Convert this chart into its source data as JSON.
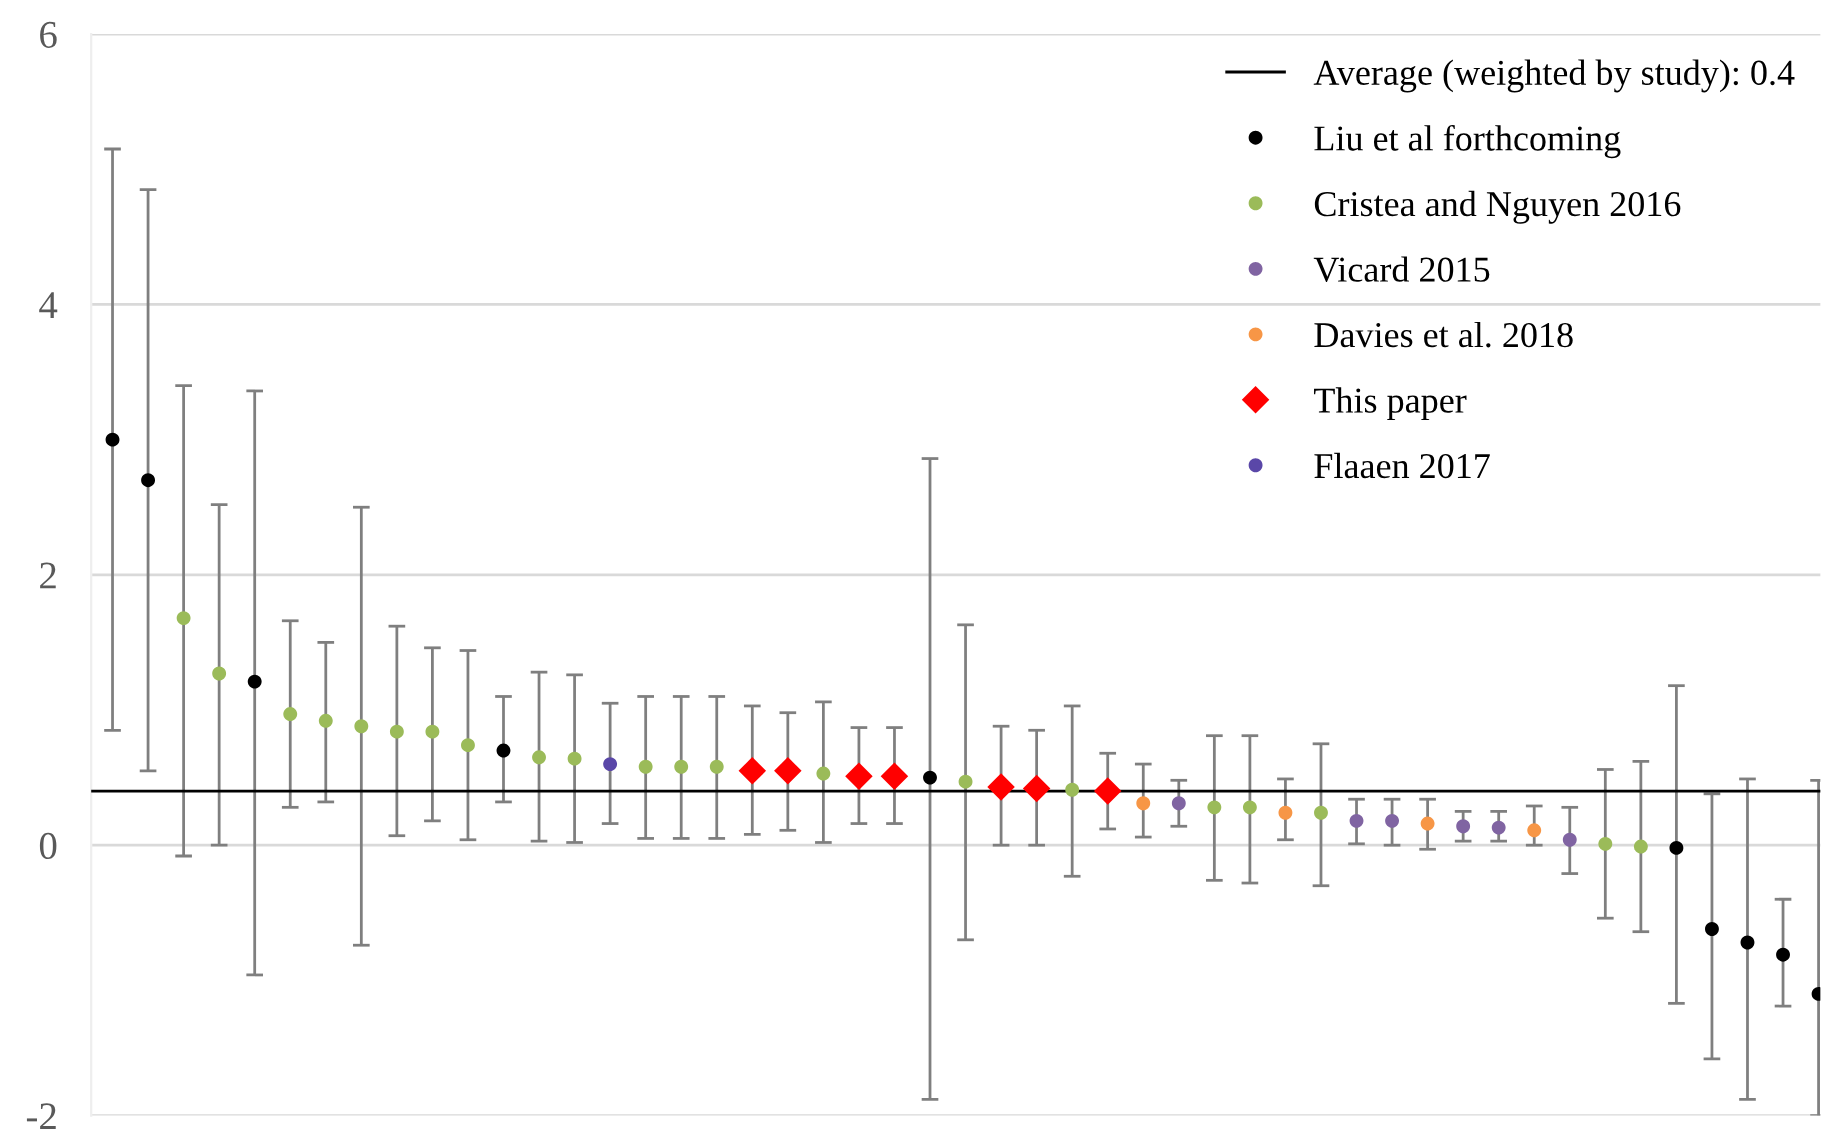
{
  "chart_data": {
    "type": "scatter",
    "categories": [
      null,
      null,
      null,
      null,
      null,
      null,
      null,
      null,
      null,
      null,
      null,
      null,
      null,
      null,
      null,
      null,
      null,
      null,
      null,
      null,
      null,
      null,
      null,
      null,
      null,
      null,
      null,
      null,
      null,
      null,
      null,
      null,
      null,
      null,
      null,
      null,
      null,
      null,
      null,
      null,
      null,
      null,
      null,
      null,
      null,
      null,
      null,
      null,
      null
    ],
    "series": [
      {
        "name": "Liu et al forthcoming",
        "color": "#000000",
        "marker": "circle",
        "values": [
          3.0,
          2.7,
          null,
          null,
          1.21,
          null,
          null,
          null,
          null,
          null,
          null,
          0.7,
          null,
          null,
          null,
          null,
          null,
          null,
          null,
          null,
          null,
          null,
          null,
          0.5,
          null,
          null,
          null,
          null,
          null,
          null,
          null,
          null,
          null,
          null,
          null,
          null,
          null,
          null,
          null,
          null,
          null,
          null,
          null,
          null,
          -0.02,
          -0.62,
          -0.72,
          -0.81,
          -1.1
        ],
        "errors": [
          [
            0.85,
            5.15
          ],
          [
            0.55,
            4.85
          ],
          null,
          null,
          [
            -0.96,
            3.36
          ],
          null,
          null,
          null,
          null,
          null,
          null,
          [
            0.32,
            1.1
          ],
          null,
          null,
          null,
          null,
          null,
          null,
          null,
          null,
          null,
          null,
          null,
          [
            -1.88,
            2.86
          ],
          null,
          null,
          null,
          null,
          null,
          null,
          null,
          null,
          null,
          null,
          null,
          null,
          null,
          null,
          null,
          null,
          null,
          null,
          null,
          null,
          [
            -1.17,
            1.18
          ],
          [
            -1.58,
            0.38
          ],
          [
            -1.88,
            0.49
          ],
          [
            -1.19,
            -0.4
          ],
          [
            -2.0,
            0.48
          ]
        ]
      },
      {
        "name": "Cristea and Nguyen 2016",
        "color": "#9bbb59",
        "marker": "circle",
        "values": [
          null,
          null,
          1.68,
          1.27,
          null,
          0.97,
          0.92,
          0.88,
          0.84,
          0.84,
          0.74,
          null,
          0.65,
          0.64,
          null,
          0.58,
          0.58,
          0.58,
          null,
          null,
          0.53,
          null,
          null,
          null,
          0.47,
          null,
          null,
          0.41,
          null,
          null,
          null,
          0.28,
          0.28,
          null,
          0.24,
          null,
          null,
          null,
          null,
          null,
          null,
          null,
          0.01,
          -0.01,
          null,
          null,
          null,
          null,
          null
        ],
        "errors": [
          null,
          null,
          [
            -0.08,
            3.4
          ],
          [
            0.0,
            2.52
          ],
          null,
          [
            0.28,
            1.66
          ],
          [
            0.32,
            1.5
          ],
          [
            -0.74,
            2.5
          ],
          [
            0.07,
            1.62
          ],
          [
            0.18,
            1.46
          ],
          [
            0.04,
            1.44
          ],
          null,
          [
            0.03,
            1.28
          ],
          [
            0.02,
            1.26
          ],
          null,
          [
            0.05,
            1.1
          ],
          [
            0.05,
            1.1
          ],
          [
            0.05,
            1.1
          ],
          null,
          null,
          [
            0.02,
            1.06
          ],
          null,
          null,
          null,
          [
            -0.7,
            1.63
          ],
          null,
          null,
          [
            -0.23,
            1.03
          ],
          null,
          null,
          null,
          [
            -0.26,
            0.81
          ],
          [
            -0.28,
            0.81
          ],
          null,
          [
            -0.3,
            0.75
          ],
          null,
          null,
          null,
          null,
          null,
          null,
          null,
          [
            -0.54,
            0.56
          ],
          [
            -0.64,
            0.62
          ],
          null,
          null,
          null,
          null,
          null
        ]
      },
      {
        "name": "Vicard 2015",
        "color": "#8064a2",
        "marker": "circle",
        "values": [
          null,
          null,
          null,
          null,
          null,
          null,
          null,
          null,
          null,
          null,
          null,
          null,
          null,
          null,
          null,
          null,
          null,
          null,
          null,
          null,
          null,
          null,
          null,
          null,
          null,
          null,
          null,
          null,
          null,
          null,
          0.31,
          null,
          null,
          null,
          null,
          0.18,
          0.18,
          null,
          0.14,
          0.13,
          null,
          0.04,
          null,
          null,
          null,
          null,
          null,
          null,
          null
        ],
        "errors": [
          null,
          null,
          null,
          null,
          null,
          null,
          null,
          null,
          null,
          null,
          null,
          null,
          null,
          null,
          null,
          null,
          null,
          null,
          null,
          null,
          null,
          null,
          null,
          null,
          null,
          null,
          null,
          null,
          null,
          null,
          [
            0.14,
            0.48
          ],
          null,
          null,
          null,
          null,
          [
            0.01,
            0.34
          ],
          [
            0.0,
            0.34
          ],
          null,
          [
            0.03,
            0.25
          ],
          [
            0.03,
            0.25
          ],
          null,
          [
            -0.21,
            0.28
          ],
          null,
          null,
          null,
          null,
          null,
          null,
          null
        ]
      },
      {
        "name": "Davies et al. 2018",
        "color": "#f79646",
        "marker": "circle",
        "values": [
          null,
          null,
          null,
          null,
          null,
          null,
          null,
          null,
          null,
          null,
          null,
          null,
          null,
          null,
          null,
          null,
          null,
          null,
          null,
          null,
          null,
          null,
          null,
          null,
          null,
          null,
          null,
          null,
          null,
          0.31,
          null,
          null,
          null,
          0.24,
          null,
          null,
          null,
          0.16,
          null,
          null,
          0.11,
          null,
          null,
          null,
          null,
          null,
          null,
          null,
          null
        ],
        "errors": [
          null,
          null,
          null,
          null,
          null,
          null,
          null,
          null,
          null,
          null,
          null,
          null,
          null,
          null,
          null,
          null,
          null,
          null,
          null,
          null,
          null,
          null,
          null,
          null,
          null,
          null,
          null,
          null,
          null,
          [
            0.06,
            0.6
          ],
          null,
          null,
          null,
          [
            0.04,
            0.49
          ],
          null,
          null,
          null,
          [
            -0.03,
            0.34
          ],
          null,
          null,
          [
            0.0,
            0.29
          ],
          null,
          null,
          null,
          null,
          null,
          null,
          null,
          null
        ]
      },
      {
        "name": "This paper",
        "color": "#ff0000",
        "marker": "diamond",
        "values": [
          null,
          null,
          null,
          null,
          null,
          null,
          null,
          null,
          null,
          null,
          null,
          null,
          null,
          null,
          null,
          null,
          null,
          null,
          0.55,
          0.55,
          null,
          0.51,
          0.51,
          null,
          null,
          0.43,
          0.42,
          null,
          0.4,
          null,
          null,
          null,
          null,
          null,
          null,
          null,
          null,
          null,
          null,
          null,
          null,
          null,
          null,
          null,
          null,
          null,
          null,
          null,
          null
        ],
        "errors": [
          null,
          null,
          null,
          null,
          null,
          null,
          null,
          null,
          null,
          null,
          null,
          null,
          null,
          null,
          null,
          null,
          null,
          null,
          [
            0.08,
            1.03
          ],
          [
            0.11,
            0.98
          ],
          null,
          [
            0.16,
            0.87
          ],
          [
            0.16,
            0.87
          ],
          null,
          null,
          [
            0.0,
            0.88
          ],
          [
            0.0,
            0.85
          ],
          null,
          [
            0.12,
            0.68
          ],
          null,
          null,
          null,
          null,
          null,
          null,
          null,
          null,
          null,
          null,
          null,
          null,
          null,
          null,
          null,
          null,
          null,
          null,
          null,
          null
        ]
      },
      {
        "name": "Flaaen 2017",
        "color": "#5a47a8",
        "marker": "circle",
        "values": [
          null,
          null,
          null,
          null,
          null,
          null,
          null,
          null,
          null,
          null,
          null,
          null,
          null,
          null,
          0.6,
          null,
          null,
          null,
          null,
          null,
          null,
          null,
          null,
          null,
          null,
          null,
          null,
          null,
          null,
          null,
          null,
          null,
          null,
          null,
          null,
          null,
          null,
          null,
          null,
          null,
          null,
          null,
          null,
          null,
          null,
          null,
          null,
          null,
          null
        ],
        "errors": [
          null,
          null,
          null,
          null,
          null,
          null,
          null,
          null,
          null,
          null,
          null,
          null,
          null,
          null,
          [
            0.16,
            1.05
          ],
          null,
          null,
          null,
          null,
          null,
          null,
          null,
          null,
          null,
          null,
          null,
          null,
          null,
          null,
          null,
          null,
          null,
          null,
          null,
          null,
          null,
          null,
          null,
          null,
          null,
          null,
          null,
          null,
          null,
          null,
          null,
          null,
          null,
          null
        ]
      }
    ],
    "ref_lines": [
      {
        "axis": "y",
        "value": 0.4,
        "label": "Average (weighted by study): 0.4",
        "color": "#000000"
      }
    ],
    "ylim": [
      -2,
      6
    ],
    "yticks": [
      -2,
      0,
      2,
      4,
      6
    ],
    "grid": "y",
    "legend": "top right",
    "tick_labels": "y"
  }
}
